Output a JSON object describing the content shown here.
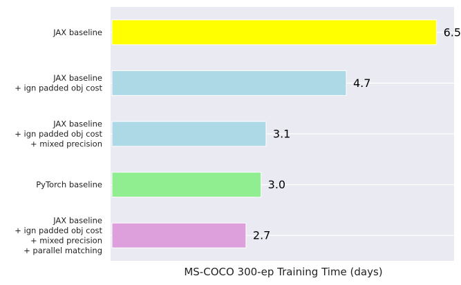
{
  "chart_data": {
    "type": "bar",
    "orientation": "horizontal",
    "title": "",
    "xlabel": "MS-COCO 300-ep Training Time (days)",
    "ylabel": "",
    "xlim": [
      0,
      6.85
    ],
    "grid": true,
    "legend": "none",
    "categories": [
      [
        "JAX baseline"
      ],
      [
        "JAX baseline",
        "+ ign padded obj cost"
      ],
      [
        "JAX baseline",
        "+ ign padded obj cost",
        "+ mixed precision"
      ],
      [
        "PyTorch baseline"
      ],
      [
        "JAX baseline",
        "+ ign padded obj cost",
        "+ mixed precision",
        "+ parallel matching"
      ]
    ],
    "values": [
      6.5,
      4.7,
      3.1,
      3.0,
      2.7
    ],
    "value_labels": [
      "6.5",
      "4.7",
      "3.1",
      "3.0",
      "2.7"
    ],
    "colors": [
      "#ffff00",
      "#add8e6",
      "#add8e6",
      "#90ee90",
      "#dda0dd"
    ],
    "background_color": "#eaeaf2",
    "grid_color": "#ffffff"
  }
}
